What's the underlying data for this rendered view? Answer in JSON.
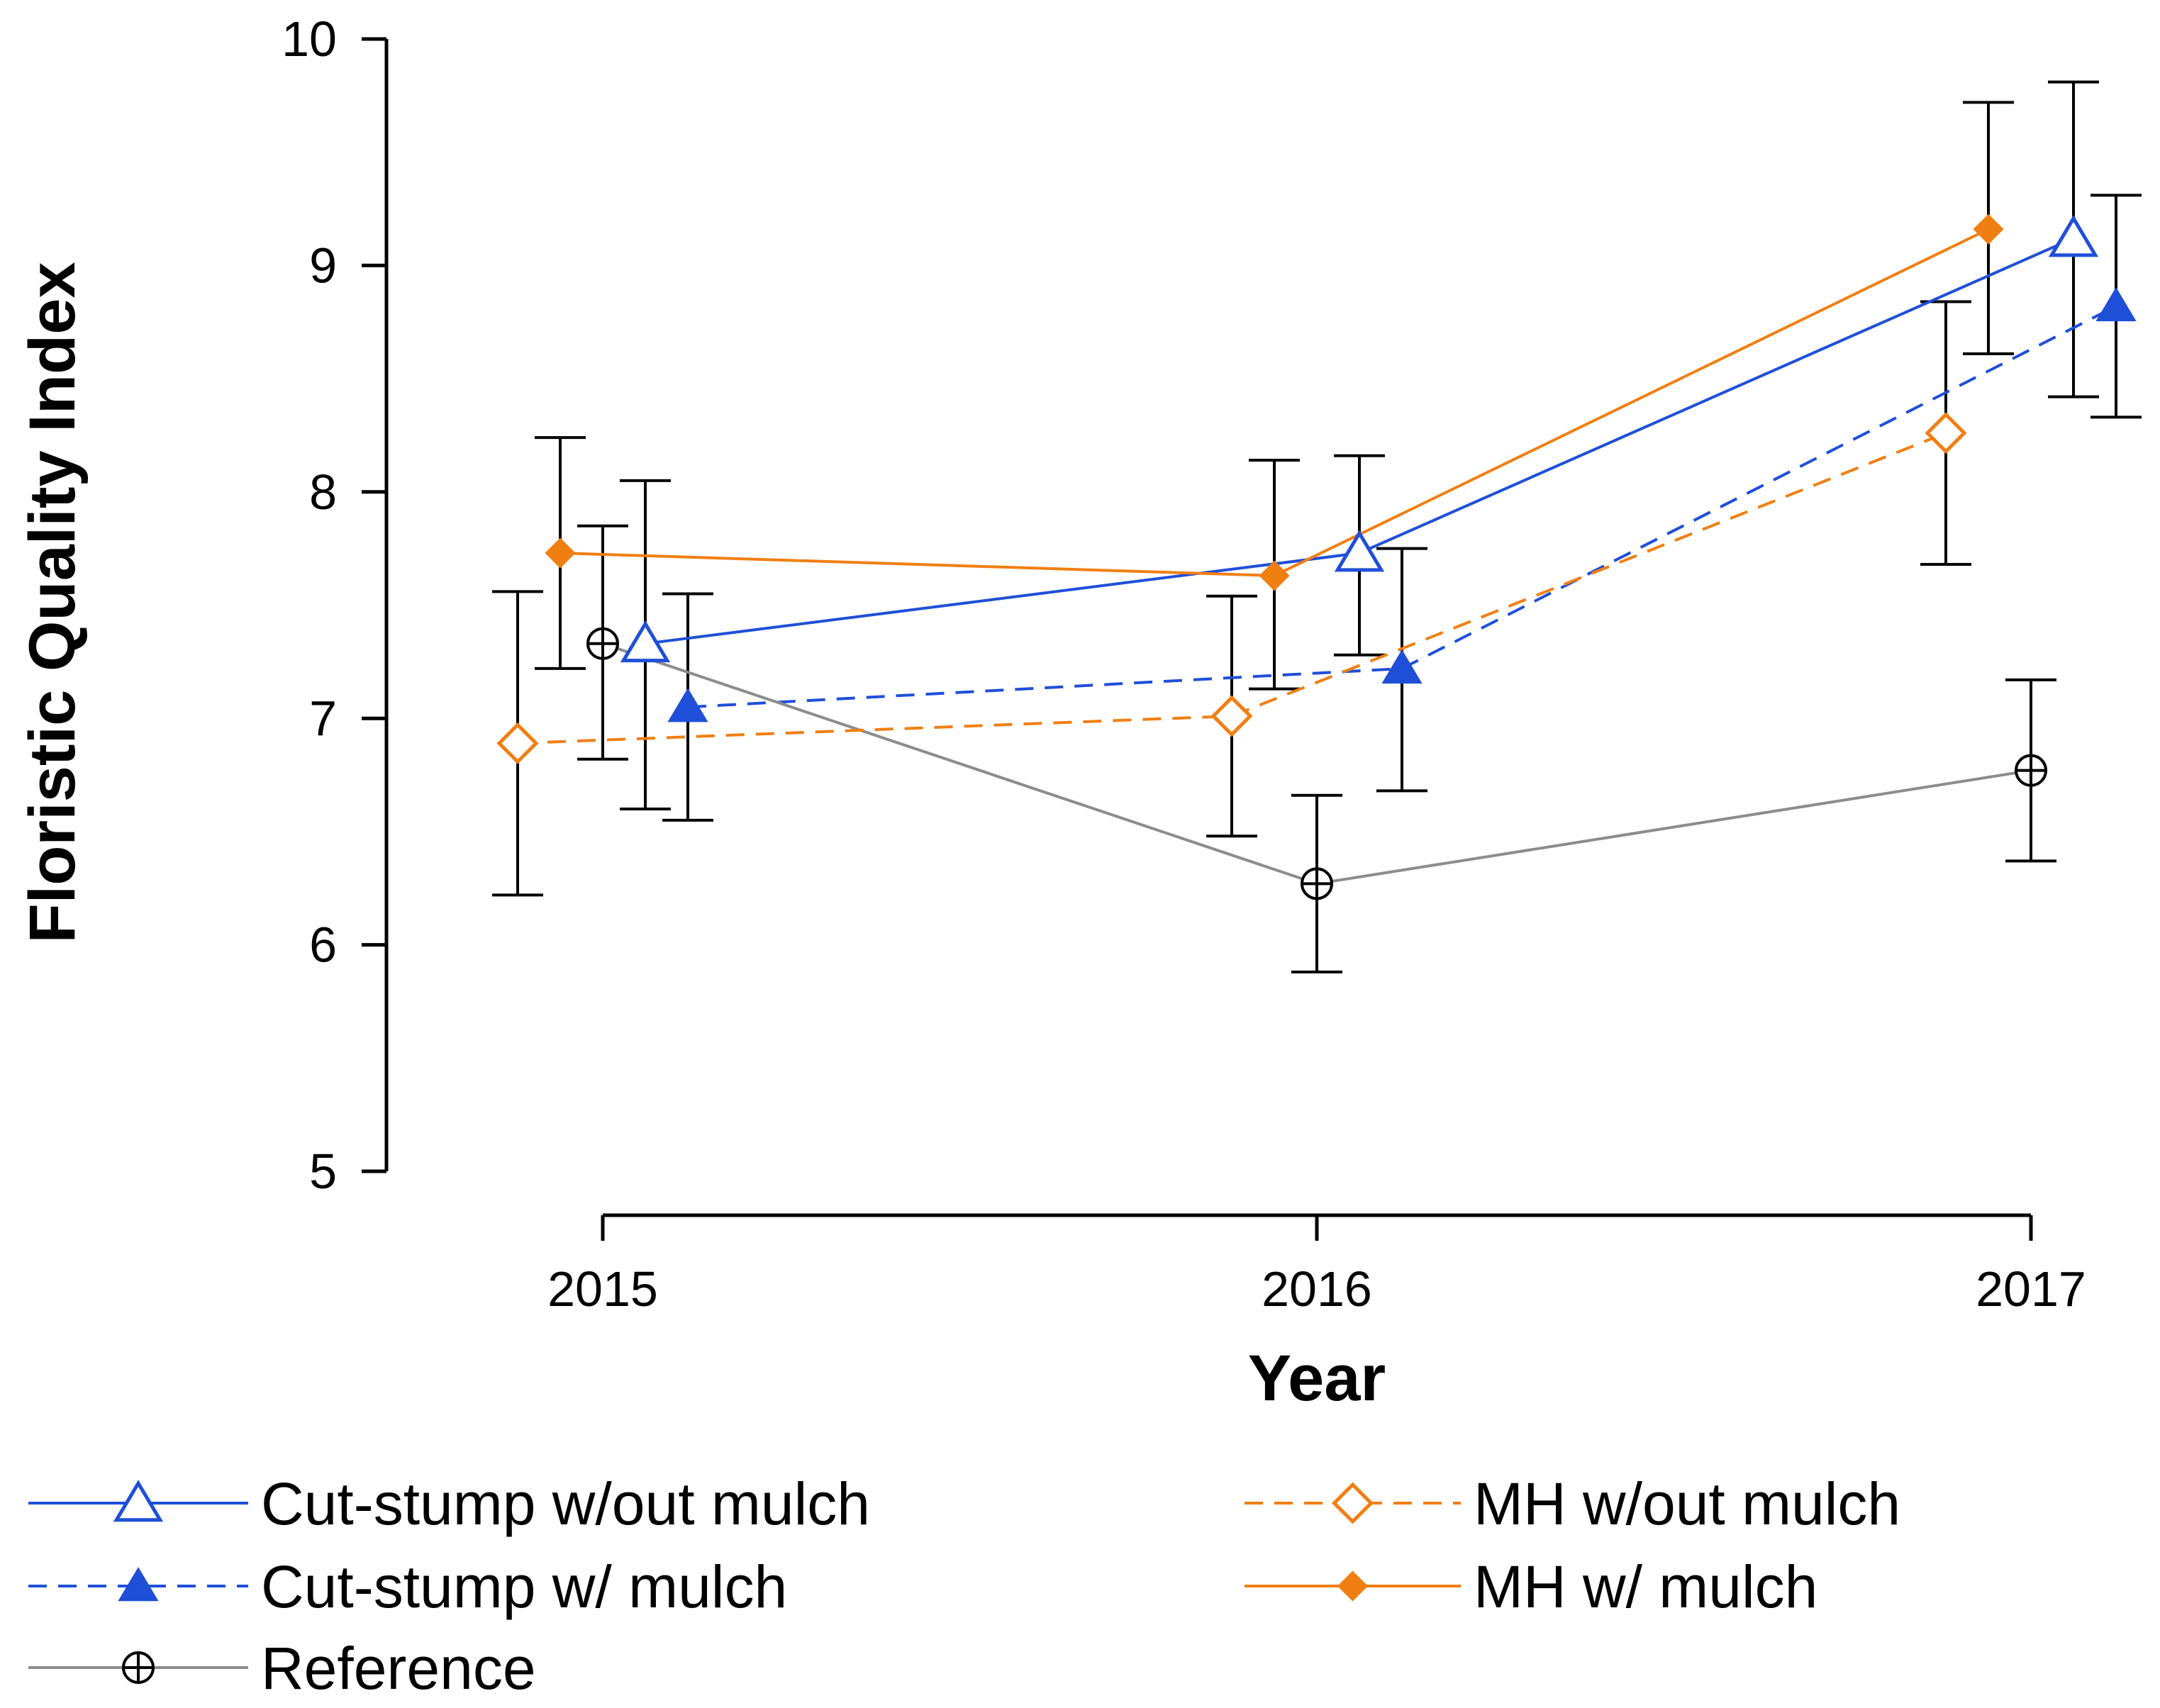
{
  "chart_data": {
    "type": "line",
    "title": "",
    "xlabel": "Year",
    "ylabel": "Floristic Quality Index",
    "categories": [
      "2015",
      "2016",
      "2017"
    ],
    "ylim": [
      5,
      10
    ],
    "yticks": [
      "5",
      "6",
      "7",
      "8",
      "9",
      "10"
    ],
    "grid": false,
    "legend_position": "bottom",
    "series": [
      {
        "name": "Cut-stump w/out mulch",
        "color": "#1f4fd8",
        "dash": "solid",
        "marker": "triangle-open",
        "values": [
          7.33,
          7.73,
          9.12
        ],
        "err_low": [
          6.6,
          7.28,
          8.42
        ],
        "err_high": [
          8.05,
          8.16,
          9.81
        ]
      },
      {
        "name": "Cut-stump w/ mulch",
        "color": "#1f4fd8",
        "dash": "dashed",
        "marker": "triangle-filled",
        "values": [
          7.05,
          7.22,
          8.82
        ],
        "err_low": [
          6.55,
          6.68,
          8.33
        ],
        "err_high": [
          7.55,
          7.75,
          9.31
        ]
      },
      {
        "name": "Reference",
        "color": "#8c8c8c",
        "dash": "solid",
        "marker": "circle-plus",
        "values": [
          7.33,
          6.27,
          6.77
        ],
        "err_low": [
          6.82,
          5.88,
          6.37
        ],
        "err_high": [
          7.85,
          6.66,
          7.17
        ]
      },
      {
        "name": "MH w/out mulch",
        "color": "#f07f12",
        "dash": "dashed",
        "marker": "diamond-open",
        "values": [
          6.89,
          7.01,
          8.26
        ],
        "err_low": [
          6.22,
          6.48,
          7.68
        ],
        "err_high": [
          7.56,
          7.54,
          8.84
        ]
      },
      {
        "name": "MH w/ mulch",
        "color": "#f07f12",
        "dash": "solid",
        "marker": "diamond-filled",
        "values": [
          7.73,
          7.63,
          9.16
        ],
        "err_low": [
          7.22,
          7.13,
          8.61
        ],
        "err_high": [
          8.24,
          8.14,
          9.72
        ]
      }
    ]
  }
}
